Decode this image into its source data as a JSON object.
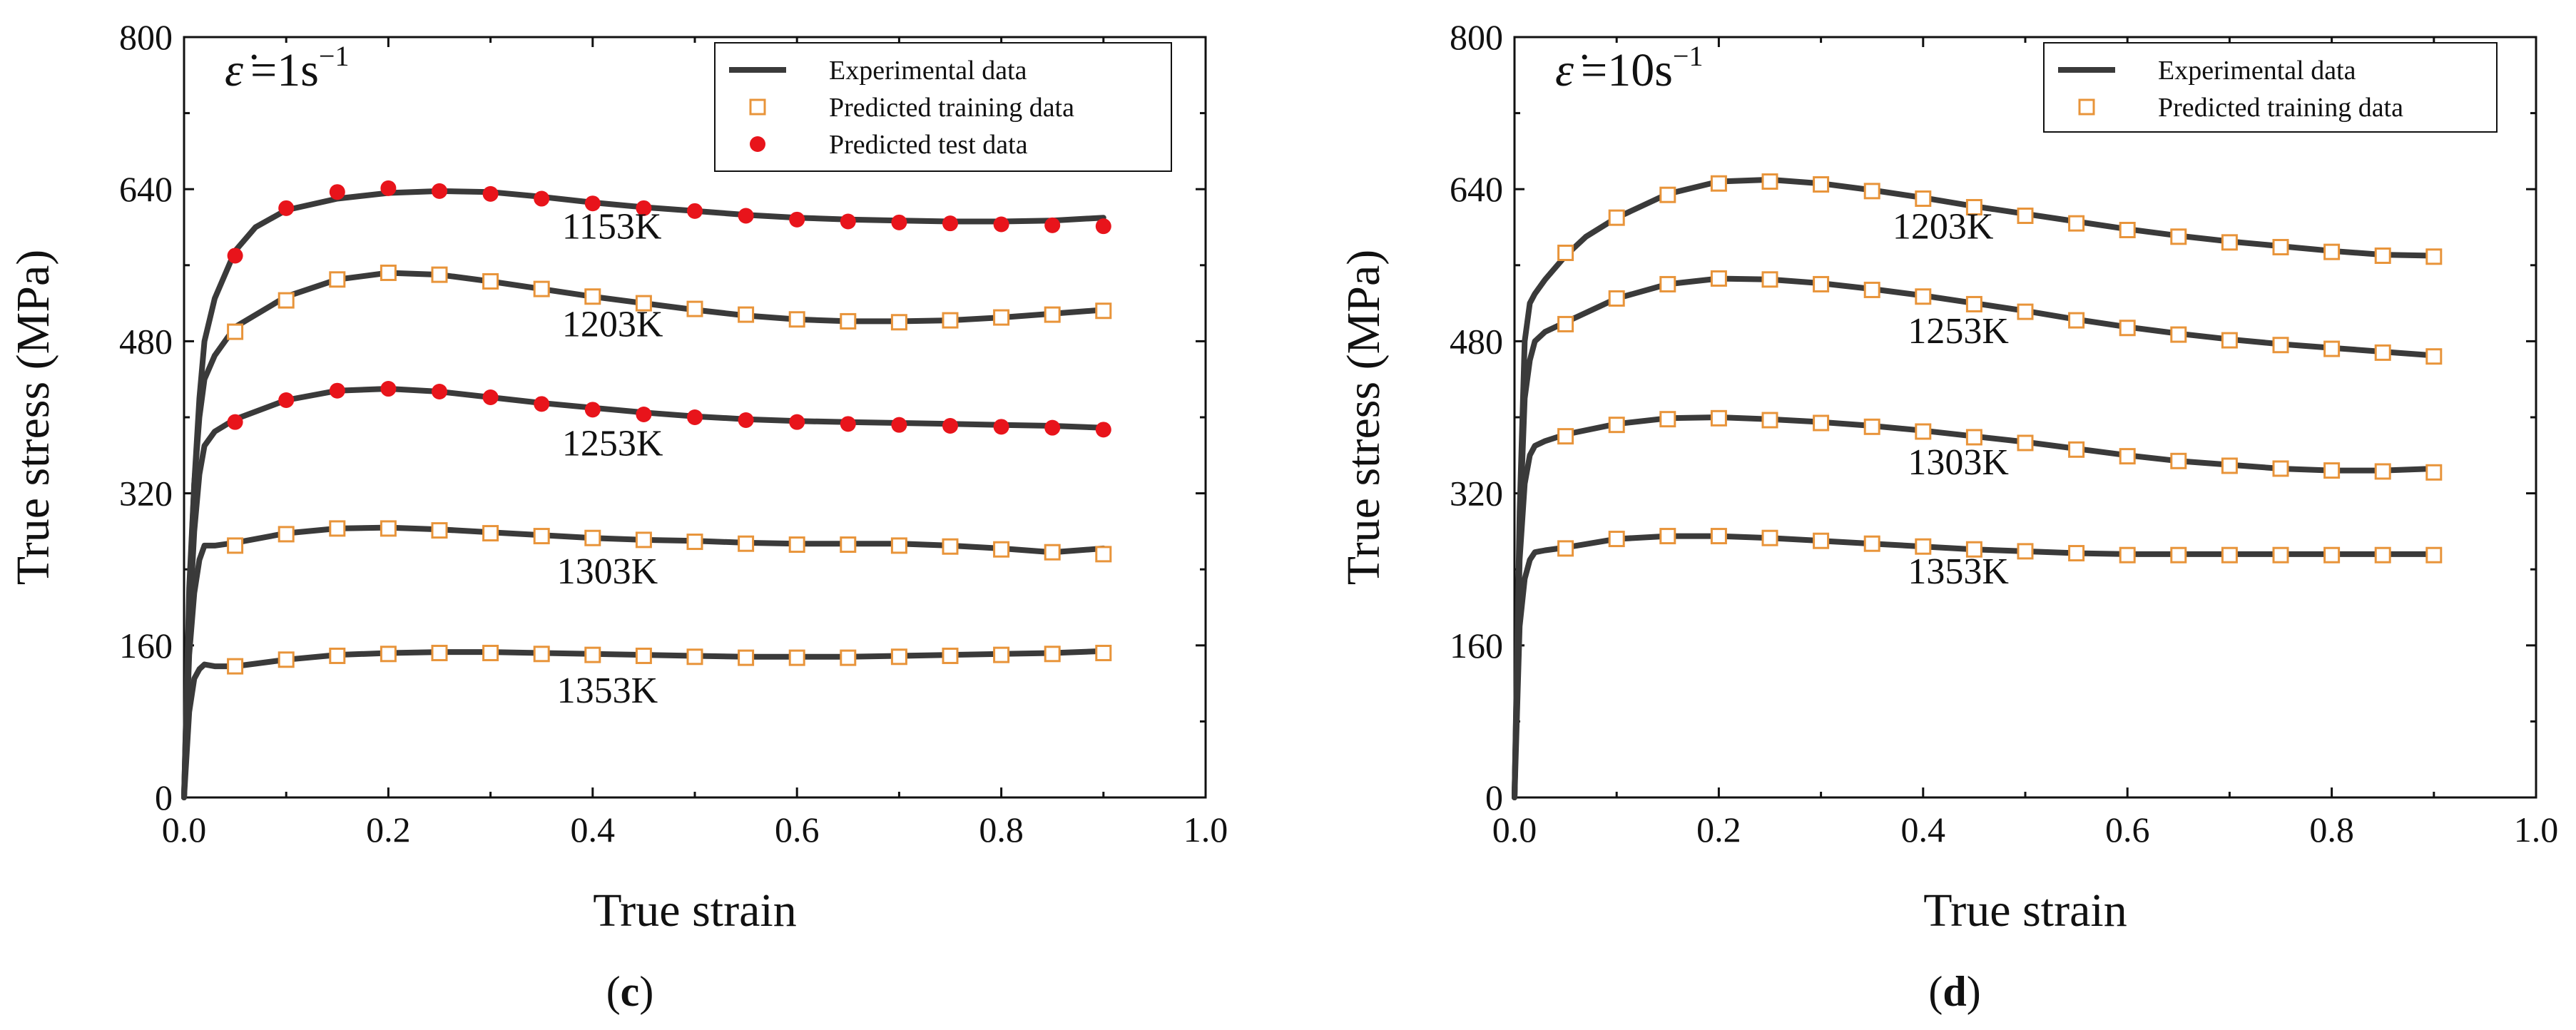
{
  "colors": {
    "experimental": "#3a3a3a",
    "predicted_training": "#e8943a",
    "predicted_test": "#e8141b",
    "axis": "#111111"
  },
  "legend_labels": {
    "experimental": "Experimental data",
    "training": "Predicted training data",
    "test": "Predicted test data"
  },
  "chart_data": [
    {
      "type": "line",
      "panel_label": "(c)",
      "panel_letter": "c",
      "rate_prefix": "=1s",
      "rate_exponent": "−1",
      "xlabel": "True strain",
      "ylabel": "True stress (MPa)",
      "xlim": [
        0.0,
        1.0
      ],
      "ylim": [
        0,
        800
      ],
      "xticks": [
        "0.0",
        "0.2",
        "0.4",
        "0.6",
        "0.8",
        "1.0"
      ],
      "yticks": [
        "0",
        "160",
        "320",
        "480",
        "640",
        "800"
      ],
      "legend": [
        "Experimental data",
        "Predicted training data",
        "Predicted test data"
      ],
      "series": [
        {
          "name": "1153K",
          "curve_x": [
            0,
            0.005,
            0.01,
            0.015,
            0.02,
            0.03,
            0.05,
            0.07,
            0.1,
            0.15,
            0.2,
            0.25,
            0.3,
            0.35,
            0.4,
            0.45,
            0.5,
            0.55,
            0.6,
            0.65,
            0.7,
            0.75,
            0.8,
            0.85,
            0.9
          ],
          "curve_y": [
            0,
            210,
            330,
            420,
            480,
            525,
            575,
            600,
            618,
            630,
            636,
            638,
            637,
            632,
            626,
            621,
            617,
            613,
            610,
            608,
            607,
            606,
            606,
            607,
            610
          ],
          "markers": "test",
          "marker_x": [
            0.05,
            0.1,
            0.15,
            0.2,
            0.25,
            0.3,
            0.35,
            0.4,
            0.45,
            0.5,
            0.55,
            0.6,
            0.65,
            0.7,
            0.75,
            0.8,
            0.85,
            0.9
          ],
          "marker_y": [
            570,
            620,
            637,
            641,
            638,
            635,
            630,
            625,
            620,
            617,
            612,
            608,
            606,
            605,
            604,
            603,
            602,
            601
          ],
          "label": "1153K",
          "label_x": 0.37,
          "label_y": 588
        },
        {
          "name": "1203K",
          "curve_x": [
            0,
            0.005,
            0.01,
            0.015,
            0.02,
            0.03,
            0.05,
            0.1,
            0.15,
            0.2,
            0.25,
            0.3,
            0.35,
            0.4,
            0.45,
            0.5,
            0.55,
            0.6,
            0.65,
            0.7,
            0.75,
            0.8,
            0.85,
            0.9
          ],
          "curve_y": [
            0,
            220,
            330,
            400,
            440,
            465,
            495,
            527,
            545,
            552,
            550,
            543,
            535,
            527,
            520,
            513,
            507,
            503,
            501,
            501,
            502,
            505,
            509,
            513
          ],
          "markers": "training",
          "marker_x": [
            0.05,
            0.1,
            0.15,
            0.2,
            0.25,
            0.3,
            0.35,
            0.4,
            0.45,
            0.5,
            0.55,
            0.6,
            0.65,
            0.7,
            0.75,
            0.8,
            0.85,
            0.9
          ],
          "marker_y": [
            490,
            523,
            545,
            552,
            550,
            543,
            535,
            527,
            520,
            514,
            508,
            503,
            501,
            500,
            502,
            505,
            508,
            512
          ],
          "label": "1203K",
          "label_x": 0.37,
          "label_y": 485
        },
        {
          "name": "1253K",
          "curve_x": [
            0,
            0.005,
            0.01,
            0.015,
            0.02,
            0.03,
            0.05,
            0.1,
            0.15,
            0.2,
            0.25,
            0.3,
            0.35,
            0.4,
            0.45,
            0.5,
            0.55,
            0.6,
            0.65,
            0.7,
            0.75,
            0.8,
            0.85,
            0.9
          ],
          "curve_y": [
            0,
            180,
            280,
            340,
            370,
            385,
            398,
            418,
            428,
            430,
            427,
            421,
            415,
            410,
            405,
            401,
            398,
            396,
            395,
            394,
            393,
            392,
            391,
            389
          ],
          "markers": "test",
          "marker_x": [
            0.05,
            0.1,
            0.15,
            0.2,
            0.25,
            0.3,
            0.35,
            0.4,
            0.45,
            0.5,
            0.55,
            0.6,
            0.65,
            0.7,
            0.75,
            0.8,
            0.85,
            0.9
          ],
          "marker_y": [
            395,
            418,
            428,
            430,
            427,
            421,
            414,
            408,
            403,
            400,
            397,
            395,
            393,
            392,
            391,
            390,
            389,
            387
          ],
          "label": "1253K",
          "label_x": 0.37,
          "label_y": 360
        },
        {
          "name": "1303K",
          "curve_x": [
            0,
            0.005,
            0.01,
            0.015,
            0.02,
            0.03,
            0.05,
            0.1,
            0.15,
            0.2,
            0.25,
            0.3,
            0.35,
            0.4,
            0.45,
            0.5,
            0.55,
            0.6,
            0.65,
            0.7,
            0.75,
            0.8,
            0.85,
            0.9
          ],
          "curve_y": [
            0,
            150,
            215,
            250,
            265,
            265,
            268,
            278,
            283,
            284,
            282,
            279,
            276,
            273,
            271,
            270,
            268,
            267,
            267,
            267,
            265,
            262,
            258,
            262
          ],
          "markers": "training",
          "marker_x": [
            0.05,
            0.1,
            0.15,
            0.2,
            0.25,
            0.3,
            0.35,
            0.4,
            0.45,
            0.5,
            0.55,
            0.6,
            0.65,
            0.7,
            0.75,
            0.8,
            0.85,
            0.9
          ],
          "marker_y": [
            265,
            277,
            283,
            283,
            281,
            278,
            275,
            273,
            271,
            269,
            267,
            266,
            266,
            265,
            264,
            261,
            258,
            256
          ],
          "label": "1303K",
          "label_x": 0.365,
          "label_y": 225
        },
        {
          "name": "1353K",
          "curve_x": [
            0,
            0.005,
            0.01,
            0.015,
            0.02,
            0.03,
            0.05,
            0.1,
            0.15,
            0.2,
            0.25,
            0.3,
            0.35,
            0.4,
            0.45,
            0.5,
            0.55,
            0.6,
            0.65,
            0.7,
            0.75,
            0.8,
            0.85,
            0.9
          ],
          "curve_y": [
            0,
            90,
            125,
            135,
            140,
            138,
            138,
            145,
            150,
            152,
            153,
            153,
            152,
            151,
            150,
            149,
            148,
            148,
            148,
            149,
            150,
            151,
            152,
            154
          ],
          "markers": "training",
          "marker_x": [
            0.05,
            0.1,
            0.15,
            0.2,
            0.25,
            0.3,
            0.35,
            0.4,
            0.45,
            0.5,
            0.55,
            0.6,
            0.65,
            0.7,
            0.75,
            0.8,
            0.85,
            0.9
          ],
          "marker_y": [
            138,
            145,
            149,
            151,
            152,
            152,
            151,
            150,
            149,
            148,
            147,
            147,
            147,
            148,
            149,
            150,
            151,
            152
          ],
          "label": "1353K",
          "label_x": 0.365,
          "label_y": 100
        }
      ]
    },
    {
      "type": "line",
      "panel_label": "(d)",
      "panel_letter": "d",
      "rate_prefix": "=10s",
      "rate_exponent": "−1",
      "xlabel": "True strain",
      "ylabel": "True stress (MPa)",
      "xlim": [
        0.0,
        1.0
      ],
      "ylim": [
        0,
        800
      ],
      "xticks": [
        "0.0",
        "0.2",
        "0.4",
        "0.6",
        "0.8",
        "1.0"
      ],
      "yticks": [
        "0",
        "160",
        "320",
        "480",
        "640",
        "800"
      ],
      "legend": [
        "Experimental data",
        "Predicted training data"
      ],
      "series": [
        {
          "name": "1203K",
          "curve_x": [
            0,
            0.005,
            0.01,
            0.015,
            0.02,
            0.03,
            0.05,
            0.07,
            0.1,
            0.15,
            0.2,
            0.25,
            0.3,
            0.35,
            0.4,
            0.45,
            0.5,
            0.55,
            0.6,
            0.65,
            0.7,
            0.75,
            0.8,
            0.85,
            0.9
          ],
          "curve_y": [
            0,
            300,
            480,
            520,
            530,
            545,
            570,
            590,
            610,
            635,
            648,
            650,
            646,
            639,
            631,
            622,
            614,
            606,
            598,
            591,
            585,
            580,
            575,
            571,
            570
          ],
          "markers": "training",
          "marker_x": [
            0.05,
            0.1,
            0.15,
            0.2,
            0.25,
            0.3,
            0.35,
            0.4,
            0.45,
            0.5,
            0.55,
            0.6,
            0.65,
            0.7,
            0.75,
            0.8,
            0.85,
            0.9
          ],
          "marker_y": [
            573,
            610,
            634,
            646,
            648,
            645,
            638,
            630,
            621,
            612,
            604,
            597,
            590,
            584,
            579,
            574,
            570,
            569
          ],
          "label": "1203K",
          "label_x": 0.37,
          "label_y": 588
        },
        {
          "name": "1253K",
          "curve_x": [
            0,
            0.005,
            0.01,
            0.015,
            0.02,
            0.03,
            0.05,
            0.1,
            0.15,
            0.2,
            0.25,
            0.3,
            0.35,
            0.4,
            0.45,
            0.5,
            0.55,
            0.6,
            0.65,
            0.7,
            0.75,
            0.8,
            0.85,
            0.9
          ],
          "curve_y": [
            0,
            280,
            420,
            460,
            480,
            490,
            500,
            525,
            540,
            546,
            545,
            541,
            535,
            528,
            520,
            512,
            503,
            495,
            488,
            482,
            477,
            473,
            469,
            465
          ],
          "markers": "training",
          "marker_x": [
            0.05,
            0.1,
            0.15,
            0.2,
            0.25,
            0.3,
            0.35,
            0.4,
            0.45,
            0.5,
            0.55,
            0.6,
            0.65,
            0.7,
            0.75,
            0.8,
            0.85,
            0.9
          ],
          "marker_y": [
            498,
            525,
            540,
            546,
            545,
            540,
            534,
            527,
            519,
            511,
            502,
            494,
            487,
            481,
            476,
            472,
            468,
            464
          ],
          "label": "1253K",
          "label_x": 0.385,
          "label_y": 478
        },
        {
          "name": "1303K",
          "curve_x": [
            0,
            0.005,
            0.01,
            0.015,
            0.02,
            0.03,
            0.05,
            0.1,
            0.15,
            0.2,
            0.25,
            0.3,
            0.35,
            0.4,
            0.45,
            0.5,
            0.55,
            0.6,
            0.65,
            0.7,
            0.75,
            0.8,
            0.85,
            0.9
          ],
          "curve_y": [
            0,
            250,
            330,
            360,
            370,
            375,
            382,
            393,
            399,
            400,
            398,
            395,
            391,
            386,
            380,
            374,
            367,
            360,
            354,
            350,
            346,
            344,
            344,
            346
          ],
          "markers": "training",
          "marker_x": [
            0.05,
            0.1,
            0.15,
            0.2,
            0.25,
            0.3,
            0.35,
            0.4,
            0.45,
            0.5,
            0.55,
            0.6,
            0.65,
            0.7,
            0.75,
            0.8,
            0.85,
            0.9
          ],
          "marker_y": [
            380,
            392,
            398,
            399,
            397,
            394,
            390,
            385,
            379,
            373,
            366,
            359,
            354,
            349,
            346,
            344,
            343,
            342
          ],
          "label": "1303K",
          "label_x": 0.385,
          "label_y": 340
        },
        {
          "name": "1353K",
          "curve_x": [
            0,
            0.005,
            0.01,
            0.015,
            0.02,
            0.03,
            0.05,
            0.1,
            0.15,
            0.2,
            0.25,
            0.3,
            0.35,
            0.4,
            0.45,
            0.5,
            0.55,
            0.6,
            0.65,
            0.7,
            0.75,
            0.8,
            0.85,
            0.9
          ],
          "curve_y": [
            0,
            180,
            230,
            250,
            258,
            260,
            263,
            272,
            275,
            275,
            273,
            270,
            267,
            264,
            261,
            259,
            257,
            256,
            256,
            256,
            256,
            256,
            256,
            256
          ],
          "markers": "training",
          "marker_x": [
            0.05,
            0.1,
            0.15,
            0.2,
            0.25,
            0.3,
            0.35,
            0.4,
            0.45,
            0.5,
            0.55,
            0.6,
            0.65,
            0.7,
            0.75,
            0.8,
            0.85,
            0.9
          ],
          "marker_y": [
            262,
            272,
            275,
            275,
            273,
            270,
            267,
            264,
            261,
            259,
            257,
            255,
            255,
            255,
            255,
            255,
            255,
            255
          ],
          "label": "1353K",
          "label_x": 0.385,
          "label_y": 225
        }
      ]
    }
  ]
}
